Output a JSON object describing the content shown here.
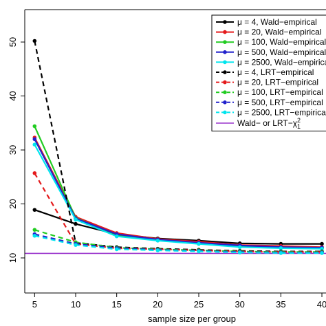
{
  "chart_data": {
    "type": "line",
    "title": "",
    "xlabel": "sample size per group",
    "ylabel": "",
    "xlim": [
      3.8,
      40.5
    ],
    "ylim": [
      3.5,
      56
    ],
    "xticks": [
      5,
      10,
      15,
      20,
      25,
      30,
      35,
      40
    ],
    "xtick_labels": [
      "5",
      "10",
      "15",
      "20",
      "25",
      "30",
      "35",
      "40"
    ],
    "yticks": [
      10,
      20,
      30,
      40,
      50
    ],
    "ytick_labels": [
      "10",
      "20",
      "30",
      "40",
      "50"
    ],
    "x": [
      5,
      10,
      15,
      20,
      25,
      30,
      35,
      40
    ],
    "legend_position": "top-right",
    "grid": false,
    "series": [
      {
        "name": "μ = 4, Wald−empirical",
        "color": "#000000",
        "dash": false,
        "values": [
          18.9,
          16.3,
          14.4,
          13.6,
          13.2,
          12.7,
          12.6,
          12.6
        ]
      },
      {
        "name": "μ = 20, Wald−empirical",
        "color": "#e41a1c",
        "dash": false,
        "values": [
          32.3,
          17.6,
          14.6,
          13.5,
          13.0,
          12.4,
          12.2,
          12.0
        ]
      },
      {
        "name": "μ = 100, Wald−empirical",
        "color": "#22cc22",
        "dash": false,
        "values": [
          34.4,
          17.4,
          14.2,
          13.3,
          12.7,
          12.1,
          11.9,
          11.8
        ]
      },
      {
        "name": "μ = 500, Wald−empirical",
        "color": "#2222cc",
        "dash": false,
        "values": [
          32.0,
          17.3,
          14.4,
          13.4,
          12.8,
          12.3,
          12.0,
          11.9
        ]
      },
      {
        "name": "μ = 2500, Wald−empirical",
        "color": "#00e5ee",
        "dash": false,
        "values": [
          31.0,
          17.1,
          14.0,
          13.2,
          12.6,
          12.0,
          11.8,
          11.7
        ]
      },
      {
        "name": "μ = 4, LRT−empirical",
        "color": "#000000",
        "dash": true,
        "values": [
          50.2,
          12.8,
          12.0,
          11.7,
          11.5,
          11.3,
          11.2,
          11.2
        ]
      },
      {
        "name": "μ = 20, LRT−empirical",
        "color": "#e41a1c",
        "dash": true,
        "values": [
          25.7,
          12.6,
          11.8,
          11.6,
          11.4,
          11.2,
          11.1,
          11.1
        ]
      },
      {
        "name": "μ = 100, LRT−empirical",
        "color": "#22cc22",
        "dash": true,
        "values": [
          15.2,
          12.9,
          11.9,
          11.6,
          11.4,
          11.2,
          11.1,
          11.1
        ]
      },
      {
        "name": "μ = 500, LRT−empirical",
        "color": "#2222cc",
        "dash": true,
        "values": [
          14.4,
          12.6,
          11.8,
          11.5,
          11.3,
          11.1,
          11.0,
          11.0
        ]
      },
      {
        "name": "μ = 2500, LRT−empirical",
        "color": "#00e5ee",
        "dash": true,
        "values": [
          14.1,
          12.4,
          11.6,
          11.4,
          11.2,
          11.0,
          10.9,
          10.9
        ]
      }
    ],
    "reference_line": {
      "name": "Wald− or LRT−χ",
      "name_superscript": "2",
      "name_subscript": "1",
      "color": "#9932cc",
      "value": 10.83
    }
  }
}
